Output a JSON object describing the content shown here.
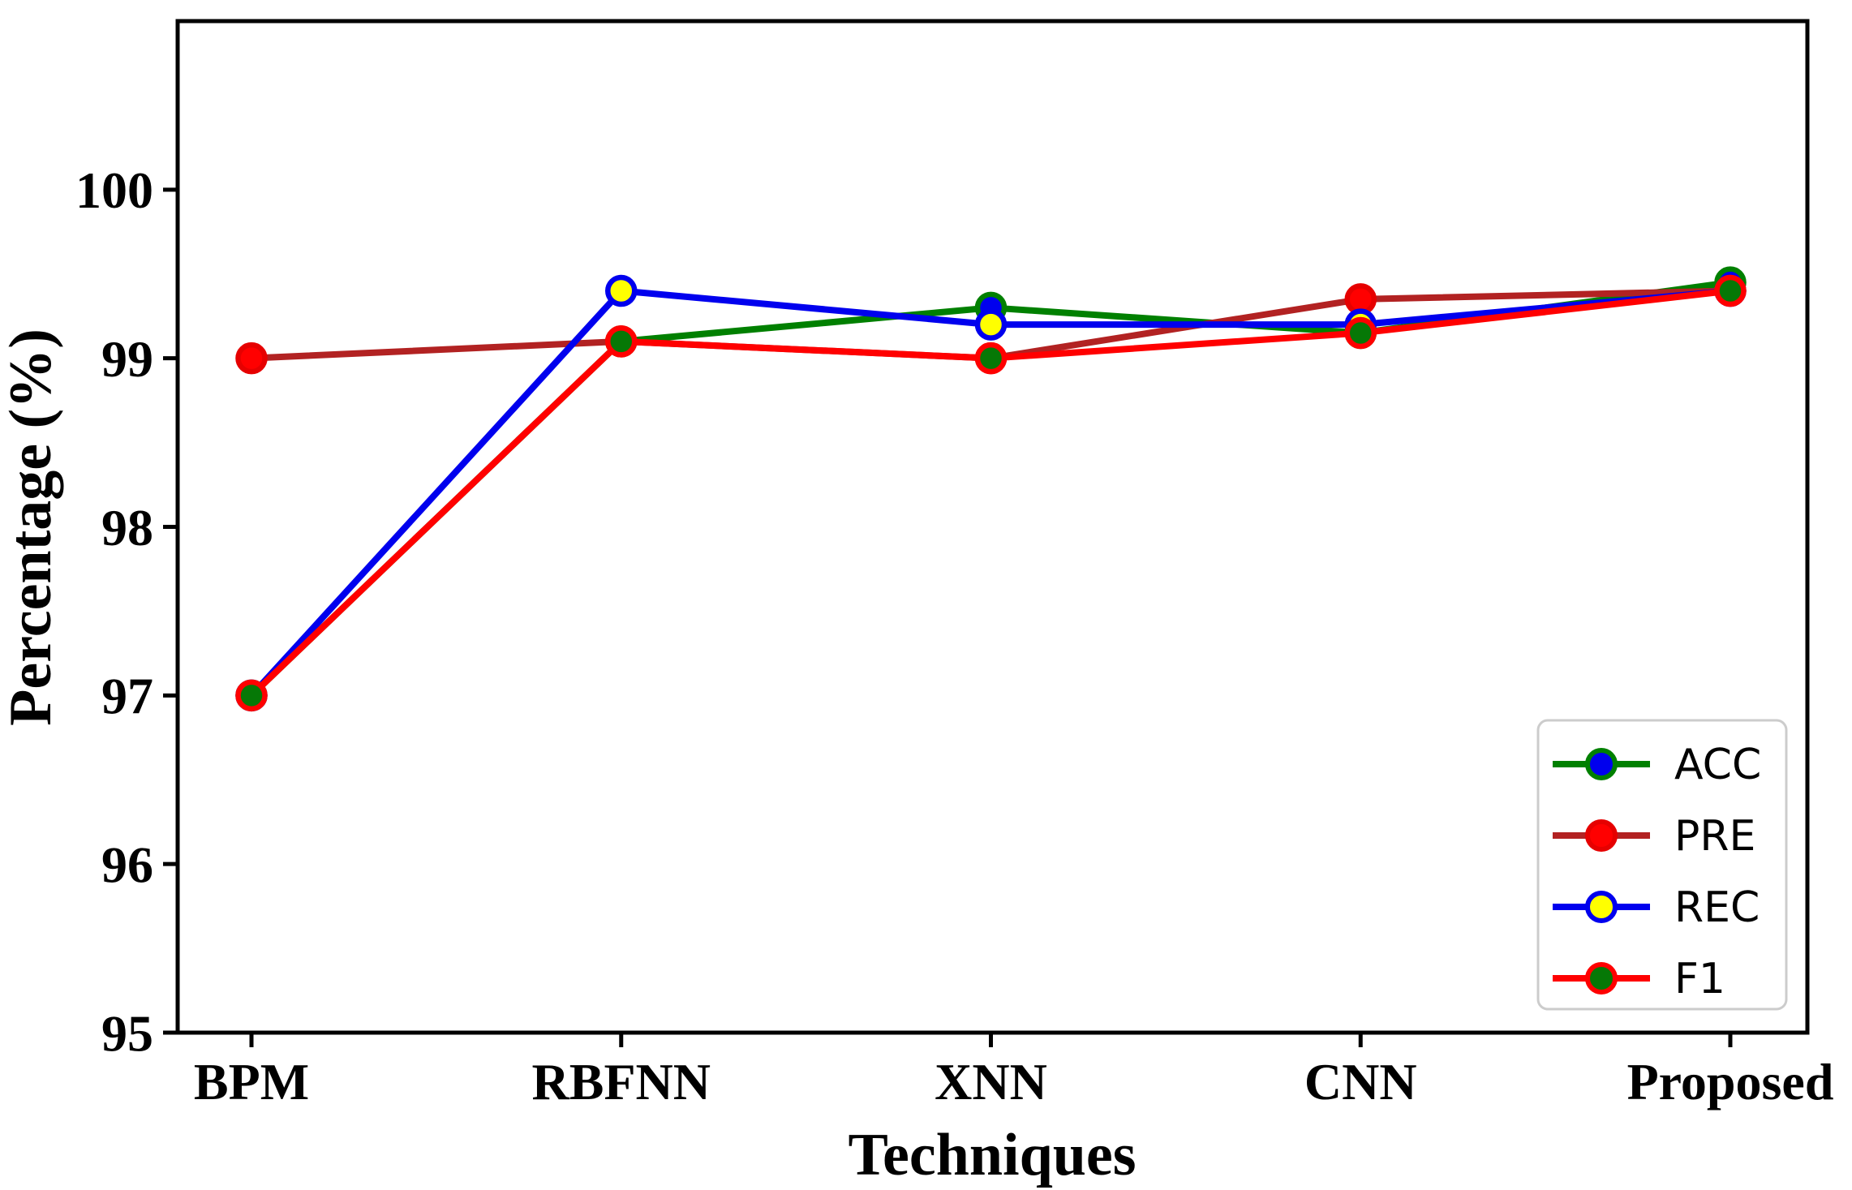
{
  "chart_data": {
    "type": "line",
    "title": "",
    "xlabel": "Techniques",
    "ylabel": "Percentage (%)",
    "categories": [
      "BPM",
      "RBFNN",
      "XNN",
      "CNN",
      "Proposed"
    ],
    "yticks": [
      95,
      96,
      97,
      98,
      99,
      100
    ],
    "ylim": [
      95,
      101
    ],
    "grid": false,
    "legend_position": "lower-right",
    "series": [
      {
        "name": "ACC",
        "values": [
          97.0,
          99.1,
          99.3,
          99.15,
          99.45
        ],
        "line_color": "#008000",
        "marker_fill": "#0000ee",
        "marker_edge": "#008000"
      },
      {
        "name": "PRE",
        "values": [
          99.0,
          99.1,
          99.0,
          99.35,
          99.4
        ],
        "line_color": "#b22222",
        "marker_fill": "#ff0000",
        "marker_edge": "#e60000"
      },
      {
        "name": "REC",
        "values": [
          97.0,
          99.4,
          99.2,
          99.2,
          99.4
        ],
        "line_color": "#0000ee",
        "marker_fill": "#ffff00",
        "marker_edge": "#0000ee"
      },
      {
        "name": "F1",
        "values": [
          97.0,
          99.1,
          99.0,
          99.15,
          99.4
        ],
        "line_color": "#ff0000",
        "marker_fill": "#067806",
        "marker_edge": "#ff0000"
      }
    ],
    "colors": {
      "axis": "#000000",
      "legend_border": "#cccccc",
      "background": "#ffffff"
    }
  }
}
